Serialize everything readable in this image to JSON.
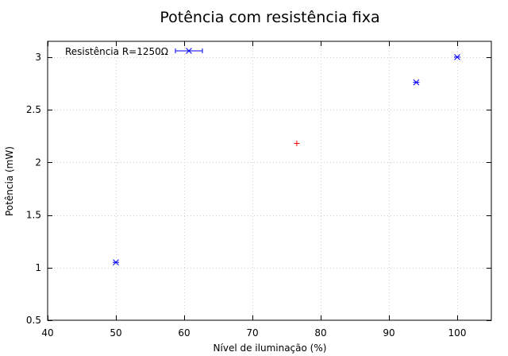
{
  "chart_data": {
    "type": "scatter",
    "title": "Potência com resistência fixa",
    "xlabel": "Nível de iluminação (%)",
    "ylabel": "Potência (mW)",
    "xlim": [
      40,
      105
    ],
    "ylim": [
      0.5,
      3.15
    ],
    "xticks": [
      40,
      50,
      60,
      70,
      80,
      90,
      100
    ],
    "yticks": [
      0.5,
      1,
      1.5,
      2,
      2.5,
      3
    ],
    "grid": true,
    "legend_position": "top-left",
    "series": [
      {
        "name": "Resistência R=1250Ω",
        "color": "#0000ff",
        "marker": "x",
        "points": [
          {
            "x": 50,
            "y": 1.05
          },
          {
            "x": 94,
            "y": 2.76
          },
          {
            "x": 100,
            "y": 3.0
          }
        ]
      },
      {
        "color": "#ff0000",
        "marker": "+",
        "points": [
          {
            "x": 76.5,
            "y": 2.18
          }
        ]
      }
    ]
  }
}
